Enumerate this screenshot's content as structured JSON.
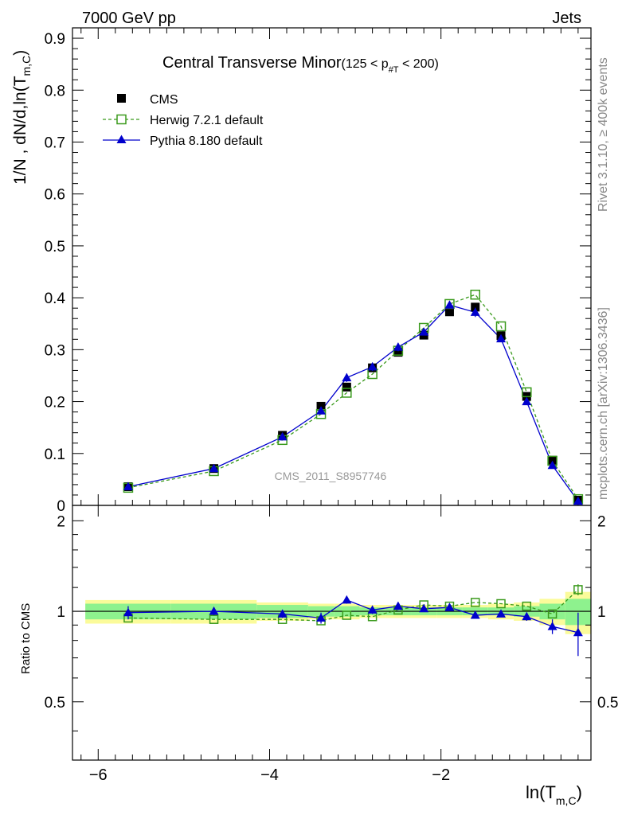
{
  "header": {
    "left": "7000 GeV pp",
    "right": "Jets"
  },
  "side_labels": {
    "rivet": "Rivet 3.1.10, ≥ 400k events",
    "mcplots": "mcplots.cern.ch [arXiv:1306.3436]"
  },
  "chart_data": {
    "type": "line",
    "title": "Central Transverse Minor",
    "title_cut": {
      "pre": "(125 < p",
      "sub": "#T",
      "post": " < 200)"
    },
    "watermark": "CMS_2011_S8957746",
    "ylabel": {
      "main": "1/N , dN/d,ln(T",
      "sub": "m,C",
      "close": ")"
    },
    "xlabel": {
      "main": "ln(T",
      "sub": "m,C",
      "close": ")"
    },
    "ratio_ylabel": "Ratio to CMS",
    "xlim": [
      -6.3,
      -0.25
    ],
    "ylim": [
      0,
      0.92
    ],
    "ratio_ylim": [
      0.32,
      2.25
    ],
    "x_ticks": [
      -6,
      -4,
      -2
    ],
    "x_tick_labels": [
      "−6",
      "−4",
      "−2"
    ],
    "y_ticks": [
      0,
      0.1,
      0.2,
      0.3,
      0.4,
      0.5,
      0.6,
      0.7,
      0.8,
      0.9
    ],
    "y_tick_labels": [
      "0",
      "0.1",
      "0.2",
      "0.3",
      "0.4",
      "0.5",
      "0.6",
      "0.7",
      "0.8",
      "0.9"
    ],
    "ratio_ticks": [
      0.5,
      1,
      2
    ],
    "ratio_tick_labels": [
      "0.5",
      "1",
      "2"
    ],
    "x": [
      -5.65,
      -4.65,
      -3.85,
      -3.4,
      -3.1,
      -2.8,
      -2.5,
      -2.2,
      -1.9,
      -1.6,
      -1.3,
      -1.0,
      -0.7,
      -0.4
    ],
    "bin_edges": [
      -6.15,
      -5.15,
      -4.15,
      -3.55,
      -3.25,
      -2.95,
      -2.65,
      -2.35,
      -2.05,
      -1.75,
      -1.45,
      -1.15,
      -0.85,
      -0.55,
      -0.25
    ],
    "series": [
      {
        "name": "CMS",
        "style": "data",
        "color": "#000000",
        "values": [
          0.036,
          0.071,
          0.135,
          0.191,
          0.228,
          0.265,
          0.295,
          0.328,
          0.373,
          0.382,
          0.327,
          0.21,
          0.087,
          0.01
        ]
      },
      {
        "name": "Herwig 7.2.1 default",
        "style": "open-square-dashed",
        "color": "#3a9a1c",
        "values": [
          0.034,
          0.066,
          0.126,
          0.176,
          0.217,
          0.253,
          0.298,
          0.342,
          0.388,
          0.406,
          0.345,
          0.218,
          0.086,
          0.012
        ],
        "ratio": [
          0.95,
          0.94,
          0.94,
          0.93,
          0.97,
          0.96,
          1.01,
          1.05,
          1.04,
          1.07,
          1.06,
          1.04,
          0.98,
          1.18
        ],
        "ratio_err": [
          0,
          0,
          0,
          0,
          0,
          0,
          0,
          0,
          0,
          0,
          0,
          0,
          0,
          0.05
        ]
      },
      {
        "name": "Pythia 8.180 default",
        "style": "filled-triangle-solid",
        "color": "#0000cc",
        "values": [
          0.036,
          0.071,
          0.132,
          0.182,
          0.246,
          0.267,
          0.305,
          0.334,
          0.386,
          0.372,
          0.321,
          0.2,
          0.077,
          0.008
        ],
        "y_err": [
          0,
          0,
          0,
          0,
          0.008,
          0.008,
          0.008,
          0,
          0,
          0.009,
          0,
          0,
          0,
          0
        ],
        "ratio": [
          0.99,
          1.0,
          0.98,
          0.95,
          1.09,
          1.01,
          1.04,
          1.02,
          1.03,
          0.97,
          0.98,
          0.96,
          0.89,
          0.85
        ],
        "ratio_err": [
          0.05,
          0.03,
          0.03,
          0.04,
          0.03,
          0.03,
          0.03,
          0.02,
          0.02,
          0.02,
          0.02,
          0.03,
          0.05,
          0.14
        ]
      }
    ],
    "uncertainty_bands": {
      "green_color": "#8ef28e",
      "yellow_color": "#fbfb9a",
      "green_half": [
        0.06,
        0.06,
        0.05,
        0.04,
        0.04,
        0.03,
        0.03,
        0.03,
        0.03,
        0.03,
        0.03,
        0.04,
        0.06,
        0.1
      ],
      "yellow_half": [
        0.09,
        0.09,
        0.07,
        0.06,
        0.06,
        0.05,
        0.05,
        0.05,
        0.05,
        0.05,
        0.06,
        0.07,
        0.1,
        0.16
      ]
    },
    "legend_position": "top-left",
    "grid": false
  }
}
